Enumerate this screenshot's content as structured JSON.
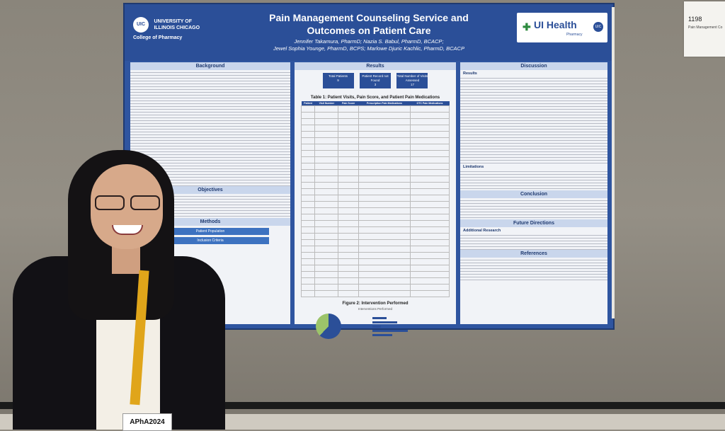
{
  "poster": {
    "title_line1": "Pain Management Counseling Service and",
    "title_line2": "Outcomes on Patient Care",
    "authors_line1": "Jennifer Takamura, PharmD; Nazia S. Babul, PharmD, BCACP;",
    "authors_line2": "Jewel Sophia Younge, PharmD, BCPS; Marlowe Djuric Kachlic, PharmD, BCACP",
    "uic_logo": "UIC",
    "university_line1": "UNIVERSITY OF",
    "university_line2": "ILLINOIS CHICAGO",
    "college": "College of Pharmacy",
    "uihealth_name": "UI Health",
    "uihealth_sub": "Pharmacy",
    "sections": {
      "background": "Background",
      "objectives": "Objectives",
      "methods": "Methods",
      "results": "Results",
      "discussion": "Discussion",
      "conclusion": "Conclusion",
      "future": "Future Directions",
      "references": "References"
    },
    "methods_boxes": [
      "Patient Population",
      "Inclusion Criteria"
    ],
    "result_boxes": [
      {
        "label": "Total Patients",
        "value": "9"
      },
      {
        "label": "Patient Record not Found",
        "value": "3"
      },
      {
        "label": "Total Number of Visits Assessed",
        "value": "17"
      }
    ],
    "table_title": "Table 1: Patient Visits, Pain Score, and Patient Pain Medications",
    "table_headers": [
      "Patient",
      "Visit Number",
      "Pain Score",
      "Prescription Pain Medications",
      "OTC Pain Medications"
    ],
    "figure_title": "Figure 2: Intervention Performed",
    "figure_sub": "Interventions Performed",
    "discussion_heads": [
      "Results",
      "Limitations",
      "Additional Research"
    ]
  },
  "sign": {
    "number": "1198",
    "text": "Pain Management Co"
  },
  "badge": {
    "text": "APhA2024"
  }
}
